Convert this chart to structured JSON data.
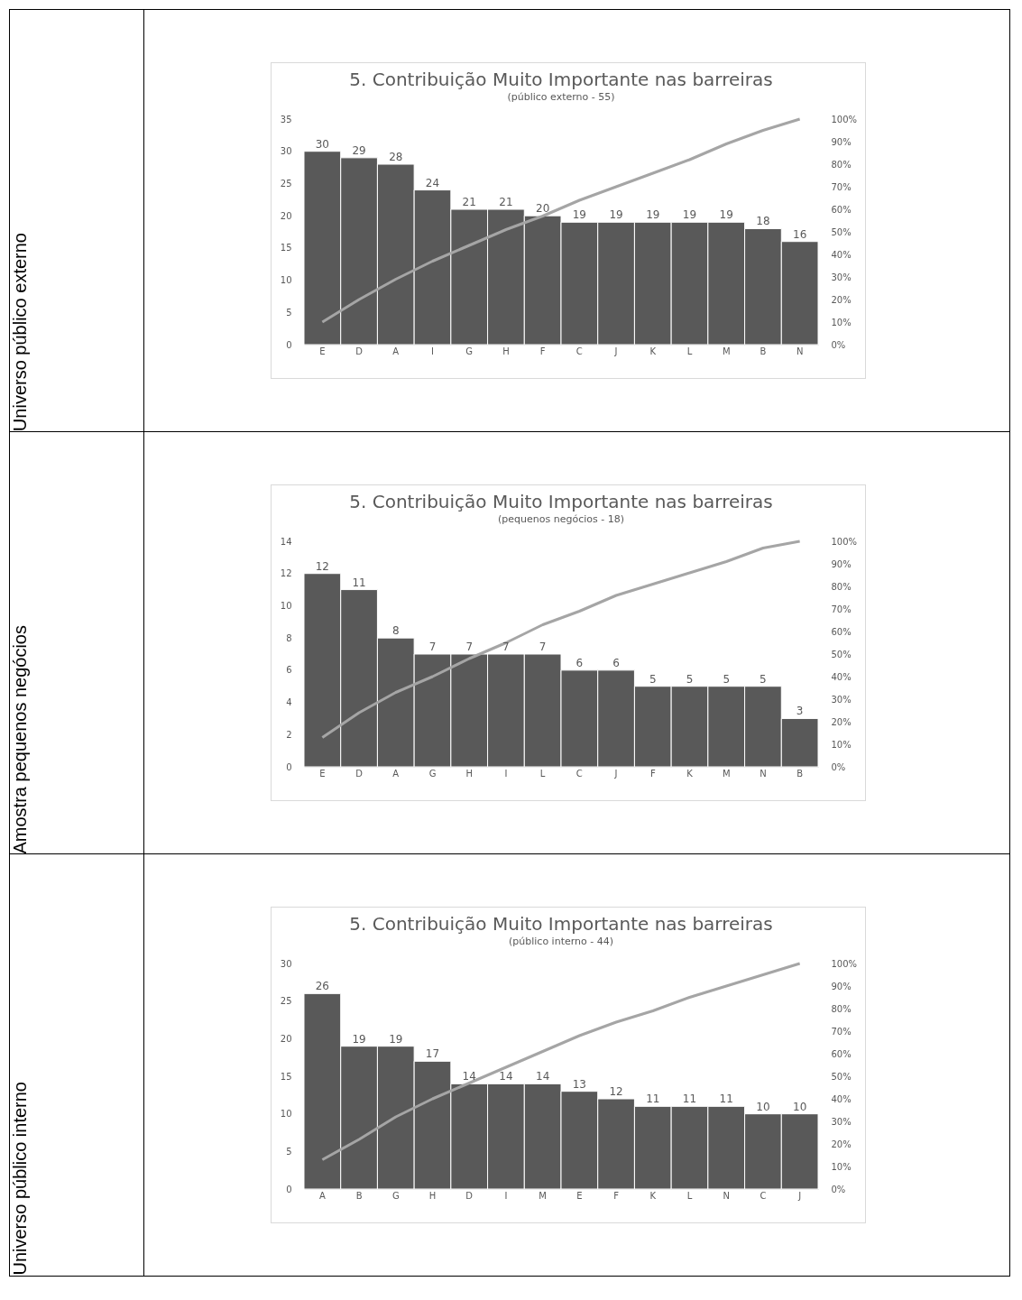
{
  "chart_data": [
    {
      "type": "bar",
      "title": "5. Contribuição Muito Importante nas barreiras",
      "subtitle": "(público externo - 55)",
      "annotations": [
        "Universo público externo"
      ],
      "categories": [
        "E",
        "D",
        "A",
        "I",
        "G",
        "H",
        "F",
        "C",
        "J",
        "K",
        "L",
        "M",
        "B",
        "N"
      ],
      "series": [
        {
          "color": "#595959",
          "values": [
            30,
            29,
            28,
            24,
            21,
            21,
            20,
            19,
            19,
            19,
            19,
            19,
            18,
            16
          ],
          "value_labels": [
            "30",
            "29",
            "28",
            "24",
            "21",
            "21",
            "20",
            "19",
            "19",
            "19",
            "19",
            "19",
            "18",
            "16"
          ]
        },
        {
          "type": "line",
          "axis": "y2",
          "color": "#a5a5a5",
          "values": [
            10,
            20,
            29,
            37,
            44,
            51,
            57,
            64,
            70,
            76,
            82,
            89,
            95,
            100
          ]
        }
      ],
      "ylim": [
        0,
        35
      ],
      "yticks": [
        0,
        5,
        10,
        15,
        20,
        25,
        30,
        35
      ],
      "y2lim": [
        0,
        100
      ],
      "y2ticks": [
        {
          "value": 0,
          "label": "0%"
        },
        {
          "value": 10,
          "label": "10%"
        },
        {
          "value": 20,
          "label": "20%"
        },
        {
          "value": 30,
          "label": "30%"
        },
        {
          "value": 40,
          "label": "40%"
        },
        {
          "value": 50,
          "label": "50%"
        },
        {
          "value": 60,
          "label": "60%"
        },
        {
          "value": 70,
          "label": "70%"
        },
        {
          "value": 80,
          "label": "80%"
        },
        {
          "value": 90,
          "label": "90%"
        },
        {
          "value": 100,
          "label": "100%"
        }
      ]
    },
    {
      "type": "bar",
      "title": "5. Contribuição Muito Importante nas barreiras",
      "subtitle": "(pequenos negócios - 18)",
      "annotations": [
        "Amostra pequenos negócios"
      ],
      "categories": [
        "E",
        "D",
        "A",
        "G",
        "H",
        "I",
        "L",
        "C",
        "J",
        "F",
        "K",
        "M",
        "N",
        "B"
      ],
      "series": [
        {
          "color": "#595959",
          "values": [
            12,
            11,
            8,
            7,
            7,
            7,
            7,
            6,
            6,
            5,
            5,
            5,
            5,
            3
          ],
          "value_labels": [
            "12",
            "11",
            "8",
            "7",
            "7",
            "7",
            "7",
            "6",
            "6",
            "5",
            "5",
            "5",
            "5",
            "3"
          ]
        },
        {
          "type": "line",
          "axis": "y2",
          "color": "#a5a5a5",
          "values": [
            13,
            24,
            33,
            40,
            48,
            55,
            63,
            69,
            76,
            81,
            86,
            91,
            97,
            100
          ]
        }
      ],
      "ylim": [
        0,
        14
      ],
      "yticks": [
        0,
        2,
        4,
        6,
        8,
        10,
        12,
        14
      ],
      "y2lim": [
        0,
        100
      ],
      "y2ticks": [
        {
          "value": 0,
          "label": "0%"
        },
        {
          "value": 10,
          "label": "10%"
        },
        {
          "value": 20,
          "label": "20%"
        },
        {
          "value": 30,
          "label": "30%"
        },
        {
          "value": 40,
          "label": "40%"
        },
        {
          "value": 50,
          "label": "50%"
        },
        {
          "value": 60,
          "label": "60%"
        },
        {
          "value": 70,
          "label": "70%"
        },
        {
          "value": 80,
          "label": "80%"
        },
        {
          "value": 90,
          "label": "90%"
        },
        {
          "value": 100,
          "label": "100%"
        }
      ]
    },
    {
      "type": "bar",
      "title": "5. Contribuição Muito Importante nas barreiras",
      "subtitle": "(público interno - 44)",
      "annotations": [
        "Universo público interno"
      ],
      "categories": [
        "A",
        "B",
        "G",
        "H",
        "D",
        "I",
        "M",
        "E",
        "F",
        "K",
        "L",
        "N",
        "C",
        "J"
      ],
      "series": [
        {
          "color": "#595959",
          "values": [
            26,
            19,
            19,
            17,
            14,
            14,
            14,
            13,
            12,
            11,
            11,
            11,
            10,
            10
          ],
          "value_labels": [
            "26",
            "19",
            "19",
            "17",
            "14",
            "14",
            "14",
            "13",
            "12",
            "11",
            "11",
            "11",
            "10",
            "10"
          ]
        },
        {
          "type": "line",
          "axis": "y2",
          "color": "#a5a5a5",
          "values": [
            13,
            22,
            32,
            40,
            47,
            54,
            61,
            68,
            74,
            79,
            85,
            90,
            95,
            100
          ]
        }
      ],
      "ylim": [
        0,
        30
      ],
      "yticks": [
        0,
        5,
        10,
        15,
        20,
        25,
        30
      ],
      "y2lim": [
        0,
        100
      ],
      "y2ticks": [
        {
          "value": 0,
          "label": "0%"
        },
        {
          "value": 10,
          "label": "10%"
        },
        {
          "value": 20,
          "label": "20%"
        },
        {
          "value": 30,
          "label": "30%"
        },
        {
          "value": 40,
          "label": "40%"
        },
        {
          "value": 50,
          "label": "50%"
        },
        {
          "value": 60,
          "label": "60%"
        },
        {
          "value": 70,
          "label": "70%"
        },
        {
          "value": 80,
          "label": "80%"
        },
        {
          "value": 90,
          "label": "90%"
        },
        {
          "value": 100,
          "label": "100%"
        }
      ]
    }
  ]
}
